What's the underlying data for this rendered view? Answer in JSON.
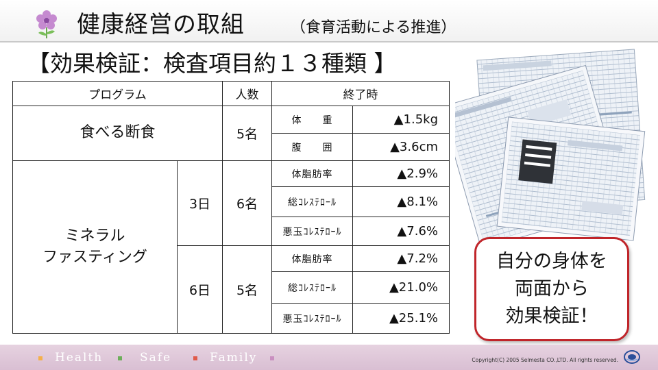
{
  "header": {
    "title": "健康経営の取組",
    "subtitle": "（食育活動による推進）"
  },
  "heading": "【効果検証：検査項目約１３種類 】",
  "table": {
    "headers": [
      "プログラム",
      "人数",
      "終了時"
    ],
    "fasting": {
      "program": "食べる断食",
      "people": "5名",
      "rows": [
        {
          "item": "体　　重",
          "value": "▲1.5kg"
        },
        {
          "item": "腹　　囲",
          "value": "▲3.6cm"
        }
      ]
    },
    "mineral": {
      "program_line1": "ミネラル",
      "program_line2": "ファスティング",
      "groups": [
        {
          "days": "3日",
          "people": "6名",
          "rows": [
            {
              "item": "体脂肪率",
              "value": "▲2.9%"
            },
            {
              "item": "総ｺﾚｽﾃﾛｰﾙ",
              "value": "▲8.1%"
            },
            {
              "item": "悪玉ｺﾚｽﾃﾛｰﾙ",
              "value": "▲7.6%"
            }
          ]
        },
        {
          "days": "6日",
          "people": "5名",
          "rows": [
            {
              "item": "体脂肪率",
              "value": "▲7.2%"
            },
            {
              "item": "総ｺﾚｽﾃﾛｰﾙ",
              "value": "▲21.0%"
            },
            {
              "item": "悪玉ｺﾚｽﾃﾛｰﾙ",
              "value": "▲25.1%"
            }
          ]
        }
      ]
    }
  },
  "callout": {
    "line1": "自分の身体を",
    "line2": "両面から",
    "line3": "効果検証！"
  },
  "footer": {
    "tags": [
      "Health",
      "Safe",
      "Family"
    ],
    "copyright": "Copyright(C) 2005 Selmesta CO.,LTD.  All rights reserved.",
    "colors": {
      "health": "#f4b04a",
      "safe": "#6dae5a",
      "family": "#e05b4b",
      "end": "#c98fc0"
    }
  },
  "icons": [
    "flower-logo-icon",
    "company-logo-icon",
    "document-stack-illustration"
  ]
}
